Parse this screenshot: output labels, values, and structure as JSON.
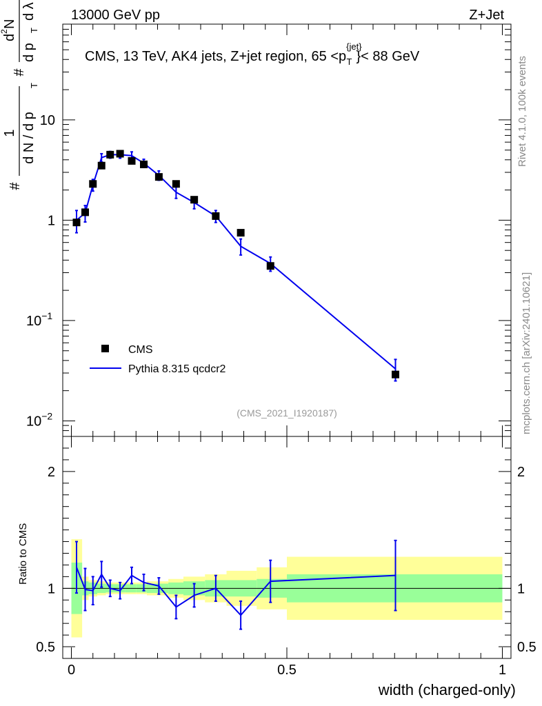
{
  "header": {
    "left": "13000 GeV pp",
    "right": "Z+Jet"
  },
  "side_labels": {
    "rivet": "Rivet 4.1.0,  100k events",
    "mcplots": "mcplots.cern.ch [arXiv:2401.10621]"
  },
  "colors": {
    "data": "#000000",
    "mc": "#0000ee",
    "band_stat": "#99ff99",
    "band_total": "#ffff99"
  },
  "chart_data": {
    "type": "scatter",
    "title": "CMS, 13 TeV, AK4 jets, Z+jet region, 65 <p_T^{jet}< 88 GeV",
    "title_parts": {
      "main": "CMS, 13 TeV, AK4 jets, Z+jet region, 65 <p",
      "sup": "{jet}",
      "sub": "T",
      "tail": "}< 88 GeV"
    },
    "analysis_id": "(CMS_2021_I1920187)",
    "xlabel": "width (charged-only)",
    "ylabel": "# 1/(dN / dp_T) # d²N/(dp_T dλ)",
    "ylabel_parts": {
      "frac1_num": "1",
      "frac1_den": "d N / d p",
      "frac2_num": "d",
      "frac2_num2": "N",
      "frac2_den": "d p",
      "frac2_den2": "d λ",
      "sub": "T",
      "sup": "2",
      "hash": "#"
    },
    "ratio_ylabel": "Ratio to CMS",
    "xlim": [
      -0.02,
      1.02
    ],
    "ylim": [
      0.007,
      90
    ],
    "yscale": "log",
    "ratio_ylim": [
      0.4,
      2.3
    ],
    "x_ticks": [
      "0",
      "0.5",
      "1"
    ],
    "x_tick_values": [
      0,
      0.5,
      1
    ],
    "y_ticks": [
      {
        "value": 0.01,
        "base": "10",
        "exp": "−2"
      },
      {
        "value": 0.1,
        "base": "10",
        "exp": "−1"
      },
      {
        "value": 1,
        "base": "1",
        "exp": ""
      },
      {
        "value": 10,
        "base": "10",
        "exp": ""
      }
    ],
    "ratio_ticks": [
      {
        "value": 0.5,
        "label": "0.5"
      },
      {
        "value": 1,
        "label": "1"
      },
      {
        "value": 2,
        "label": "2"
      }
    ],
    "legend": {
      "placement": "lower-left",
      "entries": [
        {
          "label": "CMS",
          "kind": "marker"
        },
        {
          "label": "Pythia 8.315 qcdcr2",
          "kind": "line"
        }
      ]
    },
    "bins": [
      {
        "lo": 0.0,
        "hi": 0.025
      },
      {
        "lo": 0.025,
        "hi": 0.04
      },
      {
        "lo": 0.04,
        "hi": 0.06
      },
      {
        "lo": 0.06,
        "hi": 0.08
      },
      {
        "lo": 0.08,
        "hi": 0.1
      },
      {
        "lo": 0.1,
        "hi": 0.125
      },
      {
        "lo": 0.125,
        "hi": 0.15
      },
      {
        "lo": 0.15,
        "hi": 0.175
      },
      {
        "lo": 0.175,
        "hi": 0.225
      },
      {
        "lo": 0.225,
        "hi": 0.26
      },
      {
        "lo": 0.26,
        "hi": 0.31
      },
      {
        "lo": 0.31,
        "hi": 0.36
      },
      {
        "lo": 0.36,
        "hi": 0.43
      },
      {
        "lo": 0.43,
        "hi": 0.5
      },
      {
        "lo": 0.5,
        "hi": 1.0
      }
    ],
    "series": [
      {
        "name": "CMS",
        "x": [
          0.012,
          0.032,
          0.05,
          0.07,
          0.09,
          0.113,
          0.14,
          0.168,
          0.203,
          0.243,
          0.285,
          0.335,
          0.393,
          0.462,
          0.752
        ],
        "y": [
          0.95,
          1.2,
          2.3,
          3.5,
          4.5,
          4.6,
          3.9,
          3.6,
          2.7,
          2.3,
          1.6,
          1.1,
          0.75,
          0.35,
          0.029
        ]
      },
      {
        "name": "Pythia 8.315 qcdcr2",
        "x": [
          0.012,
          0.032,
          0.05,
          0.07,
          0.09,
          0.113,
          0.14,
          0.168,
          0.203,
          0.243,
          0.285,
          0.335,
          0.393,
          0.462,
          0.752
        ],
        "y": [
          1.0,
          1.18,
          2.25,
          4.2,
          4.5,
          4.5,
          4.4,
          3.7,
          2.8,
          1.9,
          1.5,
          1.1,
          0.55,
          0.37,
          0.033
        ],
        "yerr": [
          0.25,
          0.22,
          0.3,
          0.4,
          0.35,
          0.35,
          0.4,
          0.35,
          0.3,
          0.25,
          0.2,
          0.15,
          0.1,
          0.06,
          0.008
        ]
      }
    ],
    "ratio": {
      "values": [
        1.18,
        0.99,
        0.98,
        1.12,
        1.0,
        0.98,
        1.11,
        1.05,
        1.02,
        0.84,
        0.94,
        1.0,
        0.77,
        1.06,
        1.11
      ],
      "errors": [
        0.22,
        0.18,
        0.12,
        0.11,
        0.07,
        0.07,
        0.07,
        0.07,
        0.07,
        0.1,
        0.1,
        0.11,
        0.12,
        0.18,
        0.3
      ],
      "band_stat_half": [
        0.22,
        0.06,
        0.05,
        0.04,
        0.035,
        0.035,
        0.035,
        0.035,
        0.04,
        0.05,
        0.06,
        0.07,
        0.07,
        0.08,
        0.12
      ],
      "band_total_half": [
        0.42,
        0.1,
        0.07,
        0.06,
        0.05,
        0.05,
        0.05,
        0.05,
        0.06,
        0.08,
        0.1,
        0.12,
        0.15,
        0.18,
        0.27
      ]
    }
  }
}
